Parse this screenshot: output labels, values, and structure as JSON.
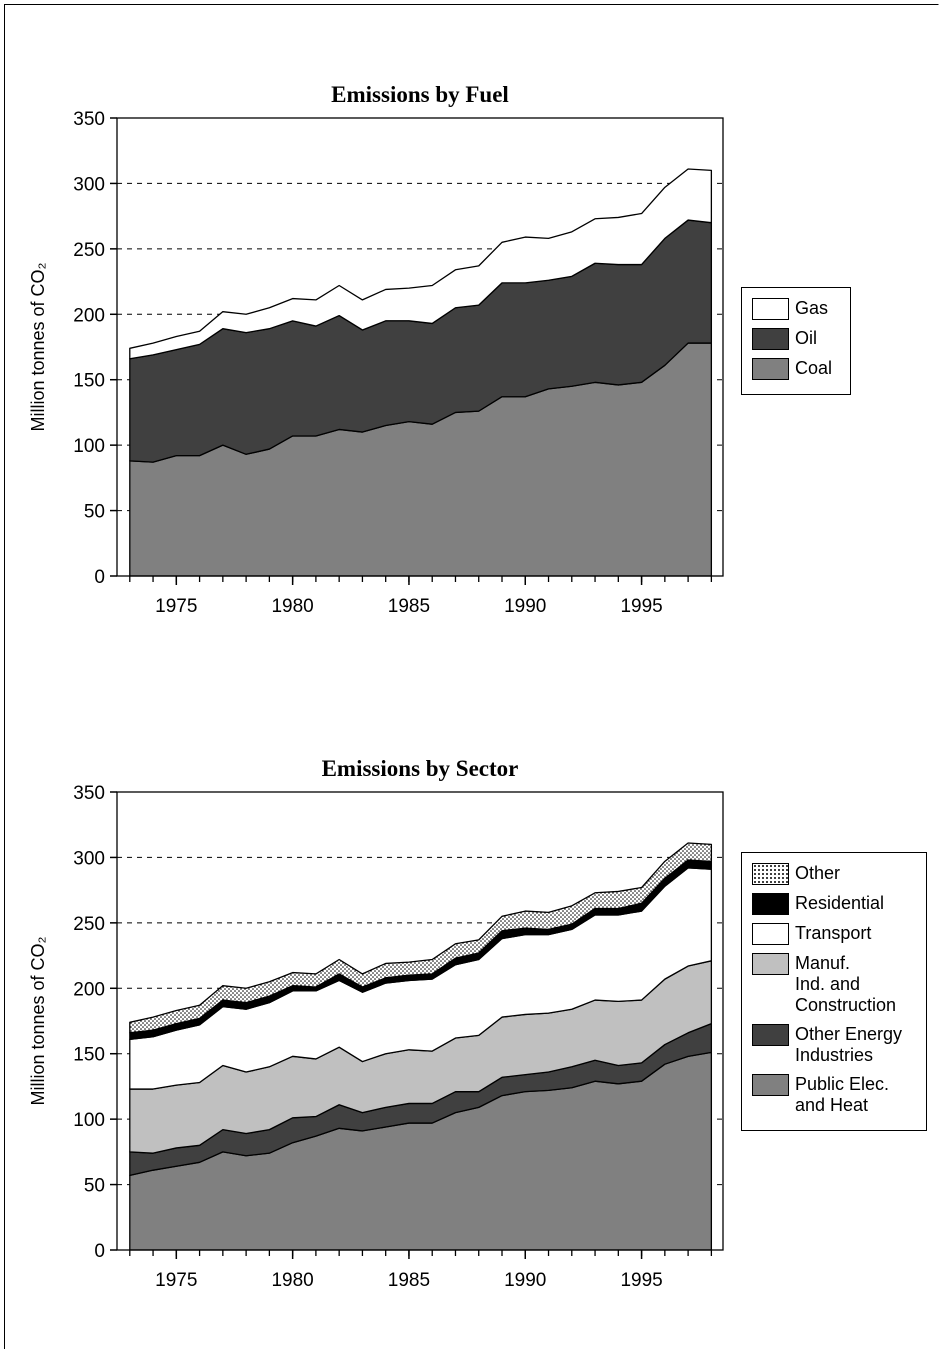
{
  "chart_data": [
    {
      "type": "stacked-area",
      "title": "Emissions by Fuel",
      "y_label": "Million tonnes of CO₂",
      "x": [
        1973,
        1974,
        1975,
        1976,
        1977,
        1978,
        1979,
        1980,
        1981,
        1982,
        1983,
        1984,
        1985,
        1986,
        1987,
        1988,
        1989,
        1990,
        1991,
        1992,
        1993,
        1994,
        1995,
        1996,
        1997,
        1998
      ],
      "series": [
        {
          "name": "Coal",
          "color": "#808080",
          "values": [
            88,
            87,
            92,
            92,
            100,
            93,
            97,
            107,
            107,
            112,
            110,
            115,
            118,
            116,
            125,
            126,
            137,
            137,
            143,
            145,
            148,
            146,
            148,
            161,
            178,
            178
          ]
        },
        {
          "name": "Oil",
          "color": "#404040",
          "values": [
            78,
            82,
            81,
            85,
            89,
            93,
            92,
            88,
            84,
            87,
            78,
            80,
            77,
            77,
            80,
            81,
            87,
            87,
            83,
            84,
            91,
            92,
            90,
            97,
            94,
            92
          ]
        },
        {
          "name": "Gas",
          "color": "#ffffff",
          "values": [
            8,
            9,
            10,
            10,
            13,
            14,
            16,
            17,
            20,
            23,
            23,
            24,
            25,
            29,
            29,
            30,
            31,
            35,
            32,
            34,
            34,
            36,
            39,
            39,
            39,
            40
          ]
        }
      ],
      "xlim": [
        1972.45,
        1998.5
      ],
      "xticks": [
        1975,
        1980,
        1985,
        1990,
        1995
      ],
      "ylim": [
        0,
        350
      ],
      "yticks": [
        0,
        50,
        100,
        150,
        200,
        250,
        300,
        350
      ],
      "grid": true,
      "legend": "right"
    },
    {
      "type": "stacked-area",
      "title": "Emissions by Sector",
      "y_label": "Million tonnes of CO₂",
      "x": [
        1973,
        1974,
        1975,
        1976,
        1977,
        1978,
        1979,
        1980,
        1981,
        1982,
        1983,
        1984,
        1985,
        1986,
        1987,
        1988,
        1989,
        1990,
        1991,
        1992,
        1993,
        1994,
        1995,
        1996,
        1997,
        1998
      ],
      "series": [
        {
          "name": "Public Elec.\nand Heat",
          "color": "#808080",
          "values": [
            57,
            61,
            64,
            67,
            75,
            72,
            74,
            82,
            87,
            93,
            91,
            94,
            97,
            97,
            105,
            109,
            118,
            121,
            122,
            124,
            129,
            127,
            129,
            142,
            148,
            151
          ]
        },
        {
          "name": "Other Energy\nIndustries",
          "color": "#404040",
          "values": [
            18,
            13,
            14,
            13,
            17,
            17,
            18,
            19,
            15,
            18,
            14,
            15,
            15,
            15,
            16,
            12,
            14,
            13,
            14,
            16,
            16,
            14,
            14,
            15,
            18,
            22
          ]
        },
        {
          "name": "Manuf.\nInd. and\nConstruction",
          "color": "#c0c0c0",
          "values": [
            48,
            49,
            48,
            48,
            49,
            47,
            48,
            47,
            44,
            44,
            39,
            41,
            41,
            40,
            41,
            43,
            46,
            46,
            45,
            44,
            46,
            49,
            48,
            50,
            51,
            48
          ]
        },
        {
          "name": "Transport",
          "color": "#ffffff",
          "values": [
            38,
            40,
            42,
            44,
            45,
            48,
            49,
            50,
            52,
            51,
            53,
            54,
            53,
            55,
            56,
            58,
            60,
            61,
            60,
            61,
            65,
            66,
            68,
            71,
            75,
            70
          ]
        },
        {
          "name": "Residential",
          "color": "#000000",
          "values": [
            5,
            5,
            5,
            5,
            5,
            5,
            5,
            4,
            3,
            5,
            4,
            4,
            4,
            4,
            5,
            5,
            6,
            5,
            4,
            4,
            5,
            5,
            6,
            6,
            6,
            6
          ]
        },
        {
          "name": "Other",
          "color": "#ffffff",
          "pattern": "dots",
          "values": [
            8,
            10,
            10,
            10,
            11,
            11,
            11,
            10,
            10,
            11,
            10,
            11,
            10,
            11,
            11,
            10,
            11,
            13,
            13,
            14,
            12,
            13,
            12,
            13,
            13,
            13
          ]
        }
      ],
      "xlim": [
        1972.45,
        1998.5
      ],
      "xticks": [
        1975,
        1980,
        1985,
        1990,
        1995
      ],
      "ylim": [
        0,
        350
      ],
      "yticks": [
        0,
        50,
        100,
        150,
        200,
        250,
        300,
        350
      ],
      "grid": true,
      "legend": "right"
    }
  ]
}
